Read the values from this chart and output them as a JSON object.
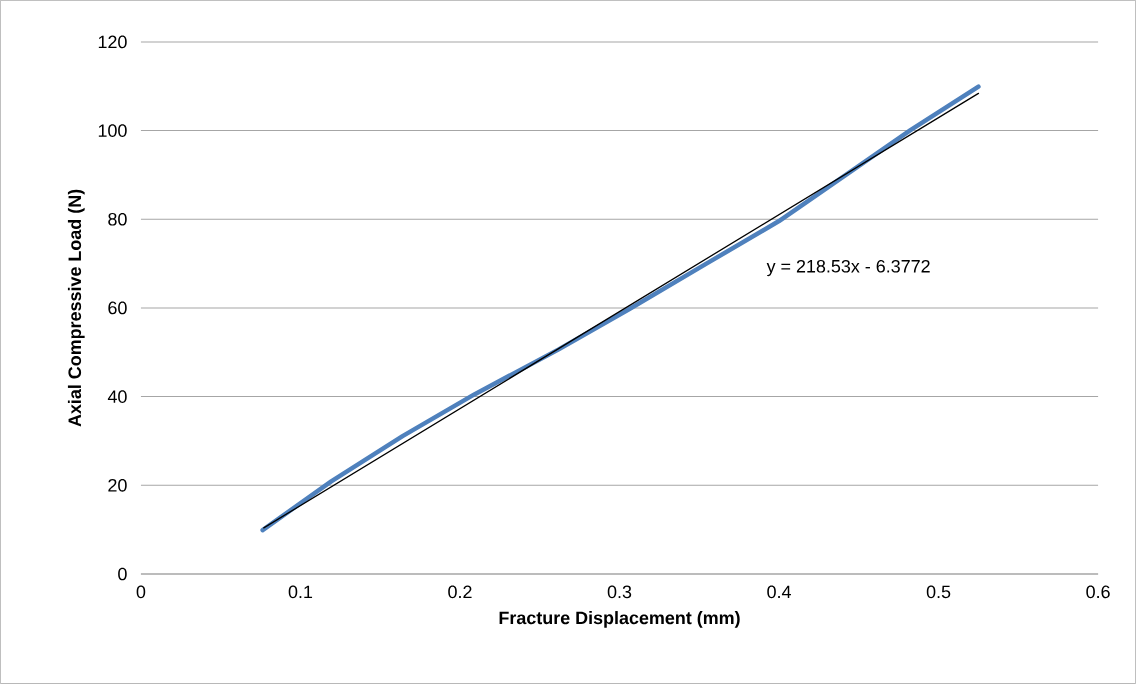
{
  "chart_data": {
    "type": "line",
    "xlabel": "Fracture Displacement (mm)",
    "ylabel": "Axial Compressive Load (N)",
    "xlim": [
      0,
      0.6
    ],
    "xticks": [
      0,
      0.1,
      0.2,
      0.3,
      0.4,
      0.5,
      0.6
    ],
    "ylim": [
      0,
      120
    ],
    "yticks": [
      0,
      20,
      40,
      60,
      80,
      100,
      120
    ],
    "grid": "y",
    "marker": "none",
    "line_style": "solid",
    "series": [
      {
        "color": "#4f81bd",
        "x": [
          0.0763,
          0.1193,
          0.164,
          0.209,
          0.2616,
          0.3065,
          0.355,
          0.4,
          0.4487,
          0.4824,
          0.525
        ],
        "values": [
          9.9,
          20.9,
          31.1,
          40.5,
          50.6,
          59.8,
          70.1,
          79.6,
          91.7,
          100.1,
          109.9
        ]
      },
      {
        "type": "line",
        "color": "#000000",
        "x": [
          0.077,
          0.525
        ],
        "values": [
          10.4,
          108.4
        ]
      }
    ],
    "annotations": [
      "y = 218.53x - 6.3772"
    ]
  }
}
